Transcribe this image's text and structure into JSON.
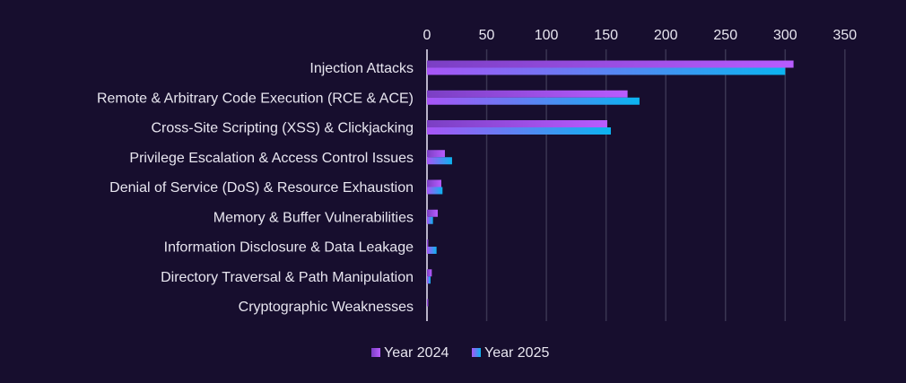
{
  "chart_data": {
    "type": "bar",
    "orientation": "horizontal",
    "title": "",
    "xlabel": "",
    "ylabel": "",
    "xlim": [
      0,
      350
    ],
    "xticks": [
      0,
      50,
      100,
      150,
      200,
      250,
      300,
      350
    ],
    "xtick_labels": [
      "0",
      "50",
      "100",
      "150",
      "200",
      "250",
      "300",
      "350"
    ],
    "grid": true,
    "legend_position": "bottom",
    "categories": [
      "Injection Attacks",
      "Remote & Arbitrary Code Execution (RCE & ACE)",
      "Cross-Site Scripting (XSS) & Clickjacking",
      "Privilege Escalation & Access Control Issues",
      "Denial of Service (DoS) & Resource Exhaustion",
      "Memory & Buffer Vulnerabilities",
      "Information Disclosure & Data Leakage",
      "Directory Traversal & Path Manipulation",
      "Cryptographic Weaknesses"
    ],
    "series": [
      {
        "name": "Year 2024",
        "values": [
          307,
          168,
          151,
          15,
          12,
          9,
          1,
          4,
          1
        ],
        "colors": [
          "#7b3fc4",
          "#b85cff"
        ]
      },
      {
        "name": "Year 2025",
        "values": [
          300,
          178,
          154,
          21,
          13,
          5,
          8,
          3,
          0
        ],
        "colors": [
          "#a855f7",
          "#0bb4f0"
        ]
      }
    ]
  }
}
